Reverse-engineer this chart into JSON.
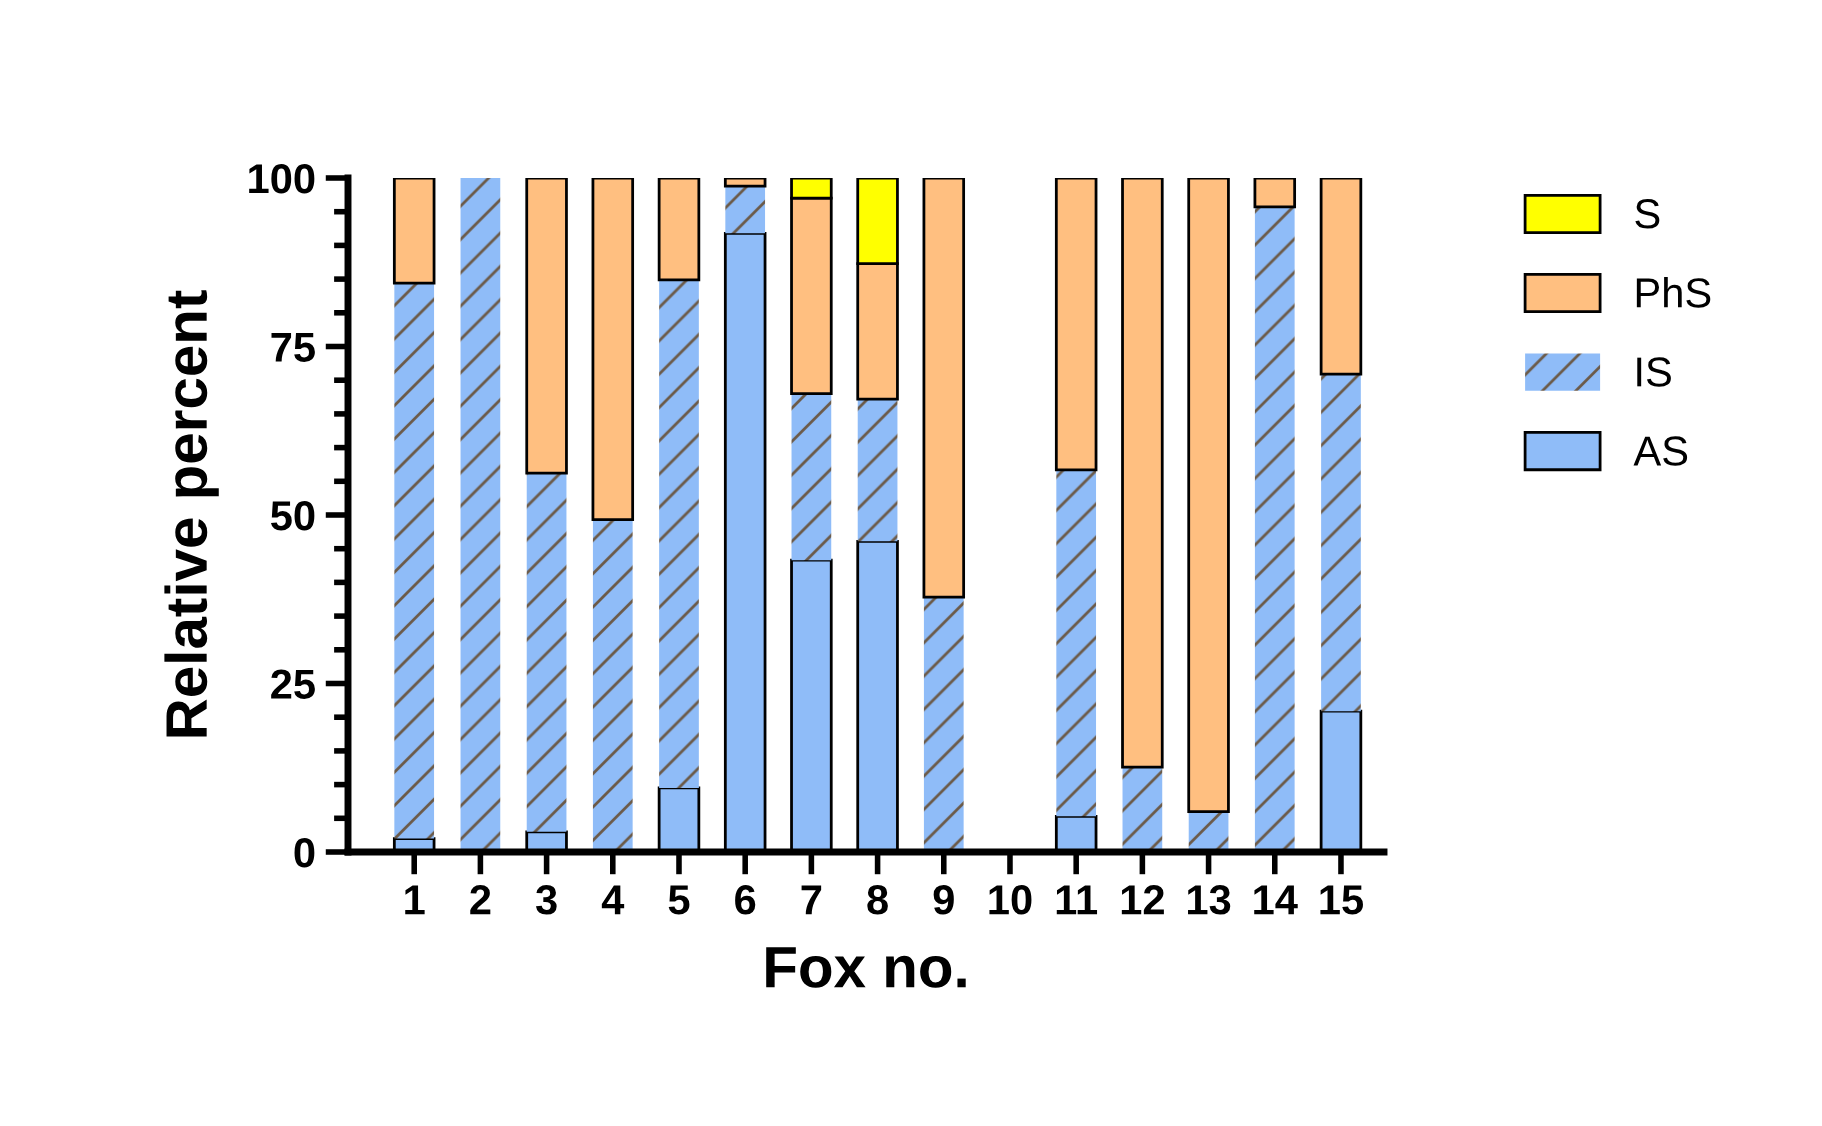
{
  "chart_data": {
    "type": "bar",
    "stacked": true,
    "xlabel": "Fox no.",
    "ylabel": "Relative percent",
    "categories": [
      "1",
      "2",
      "3",
      "4",
      "5",
      "6",
      "7",
      "8",
      "9",
      "10",
      "11",
      "12",
      "13",
      "14",
      "15"
    ],
    "series": [
      {
        "name": "AS",
        "color": "#8fbcf8",
        "values": [
          2,
          null,
          3,
          null,
          9.5,
          91.8,
          43.3,
          46.1,
          null,
          null,
          5.3,
          null,
          null,
          null,
          20.9
        ]
      },
      {
        "name": "IS",
        "color": "#8fbcf8",
        "values": [
          82.4,
          100,
          53.2,
          49.3,
          75.4,
          7,
          24.7,
          21.1,
          37.8,
          null,
          51.4,
          12.6,
          6,
          95.7,
          50
        ]
      },
      {
        "name": "PhS",
        "color": "#ffbf80",
        "values": [
          15.6,
          null,
          43.8,
          50.7,
          15.1,
          1.2,
          29,
          20.1,
          62.2,
          null,
          43.3,
          87.4,
          94,
          4.3,
          29.1
        ]
      },
      {
        "name": "S",
        "color": "#ffff00",
        "values": [
          null,
          null,
          null,
          null,
          null,
          null,
          3,
          12.7,
          null,
          null,
          null,
          null,
          null,
          null,
          null
        ]
      }
    ],
    "ylim": [
      0,
      100
    ],
    "yticks": [
      0,
      25,
      50,
      75,
      100
    ],
    "grid": false,
    "legend": "right"
  }
}
